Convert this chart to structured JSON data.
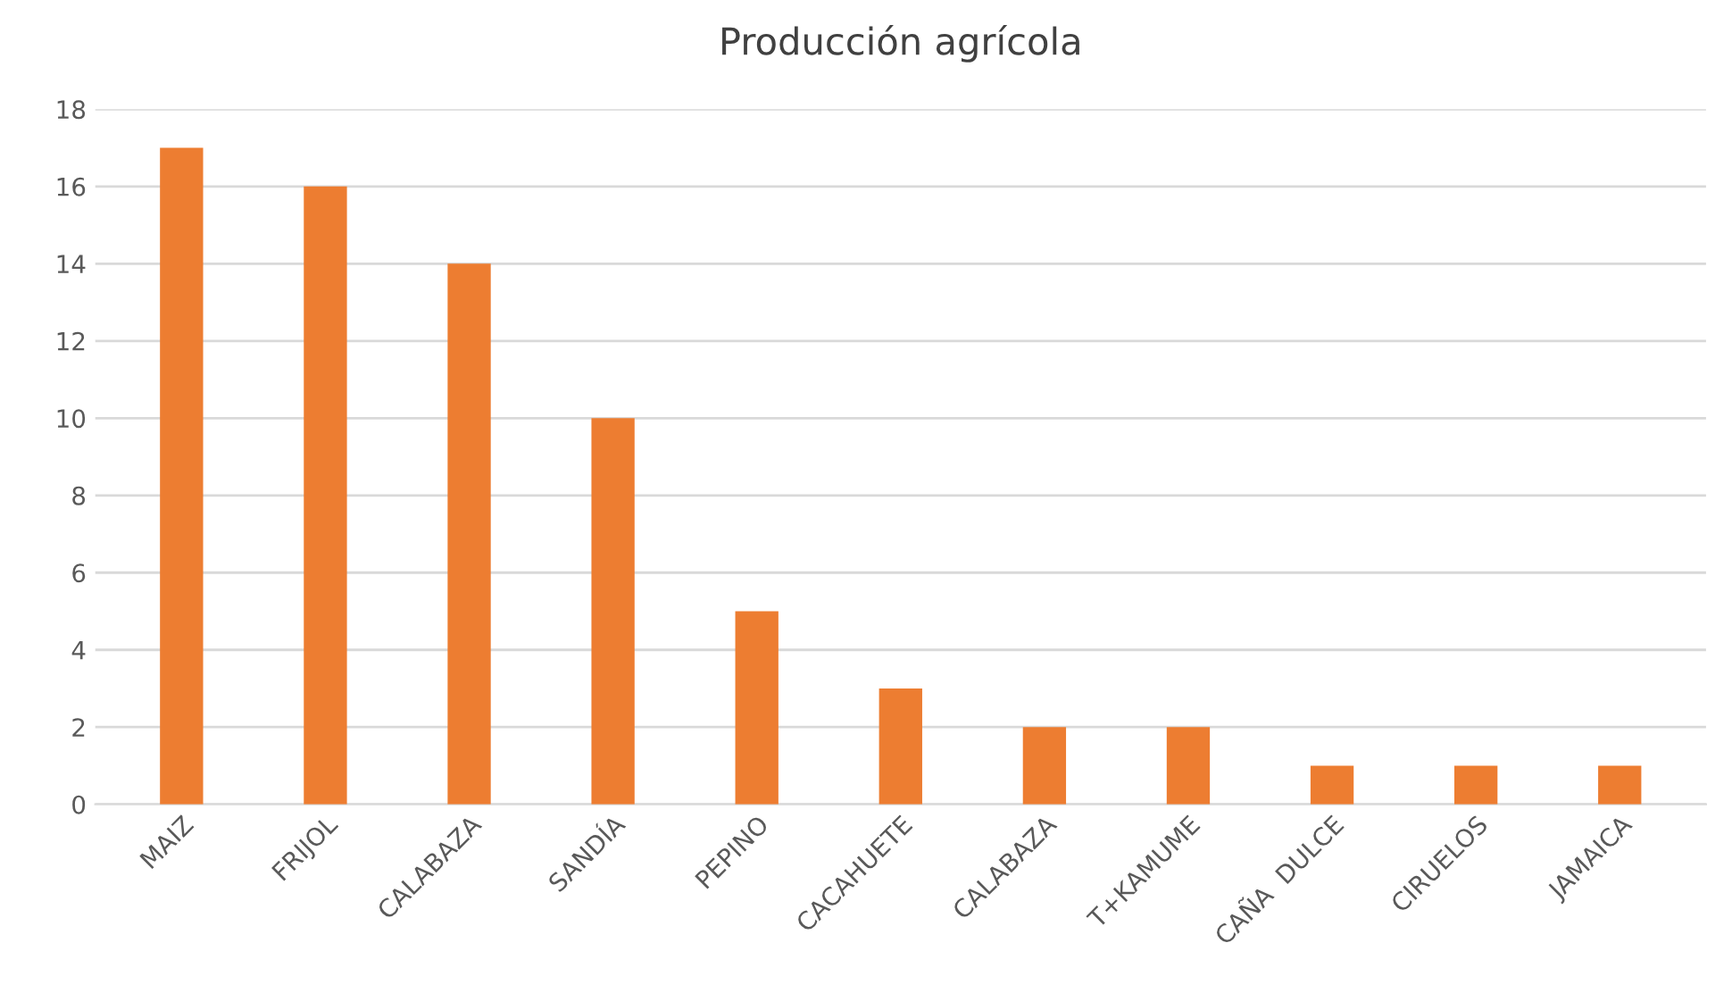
{
  "chart_data": {
    "type": "bar",
    "title": "Producción agrícola",
    "categories": [
      "MAIZ",
      "FRIJOL",
      "CALABAZA",
      "SANDÍA",
      "PEPINO",
      "CACAHUETE",
      "CALABAZA",
      "T+KAMUME",
      "CAÑA  DULCE",
      "CIRUELOS",
      "JAMAICA"
    ],
    "values": [
      17,
      16,
      14,
      10,
      5,
      3,
      2,
      2,
      1,
      1,
      1
    ],
    "color": "#ed7d31",
    "ylim": [
      0,
      18
    ],
    "yticks": [
      0,
      2,
      4,
      6,
      8,
      10,
      12,
      14,
      16,
      18
    ],
    "grid": "y"
  }
}
